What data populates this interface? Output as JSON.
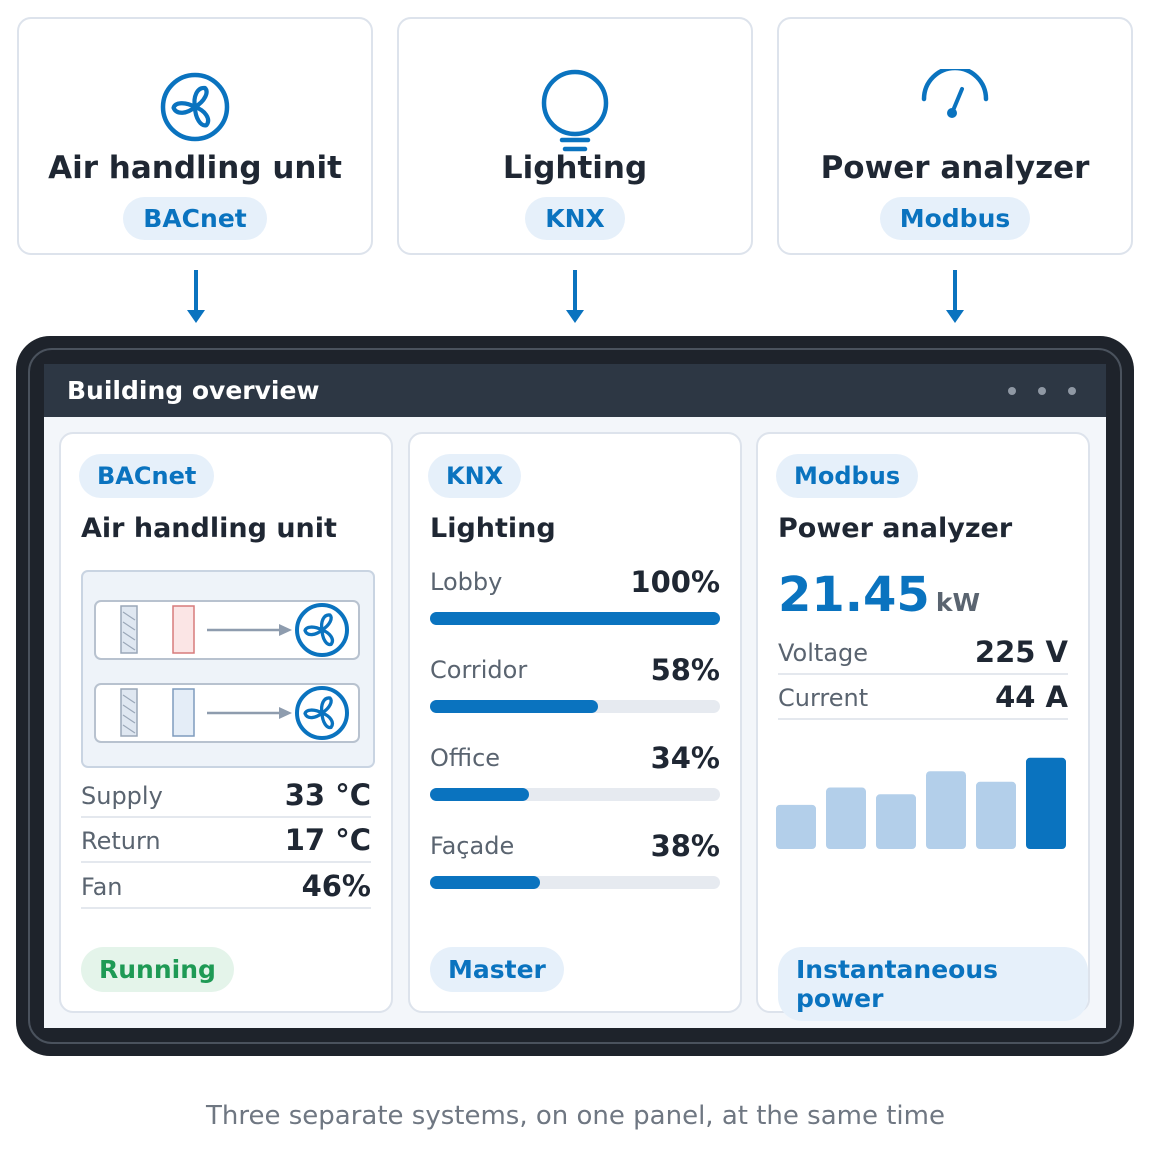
{
  "sources": [
    {
      "title": "Air handling unit",
      "protocol": "BACnet",
      "icon": "fan-icon"
    },
    {
      "title": "Lighting",
      "protocol": "KNX",
      "icon": "light-bulb-icon"
    },
    {
      "title": "Power analyzer",
      "protocol": "Modbus",
      "icon": "gauge-icon"
    }
  ],
  "panel": {
    "title": "Building overview",
    "menu_icon": "more-dots-icon",
    "ahu": {
      "protocol": "BACnet",
      "title": "Air handling unit",
      "rows": [
        {
          "label": "Supply",
          "value": "33 °C"
        },
        {
          "label": "Return",
          "value": "17 °C"
        },
        {
          "label": "Fan",
          "value": "46%"
        }
      ],
      "status": "Running",
      "status_color": "#1e9a55"
    },
    "lighting": {
      "protocol": "KNX",
      "title": "Lighting",
      "zones": [
        {
          "label": "Lobby",
          "value": "100%",
          "level": 1.0
        },
        {
          "label": "Corridor",
          "value": "58%",
          "level": 0.58
        },
        {
          "label": "Office",
          "value": "34%",
          "level": 0.34
        },
        {
          "label": "Façade",
          "value": "38%",
          "level": 0.38
        }
      ],
      "status": "Master"
    },
    "power": {
      "protocol": "Modbus",
      "title": "Power analyzer",
      "value": "21.45",
      "unit": "kW",
      "rows": [
        {
          "label": "Voltage",
          "value": "225 V"
        },
        {
          "label": "Current",
          "value": "44 A"
        }
      ],
      "status": "Instantaneous power"
    }
  },
  "chart_data": {
    "type": "bar",
    "categories": [
      "1",
      "2",
      "3",
      "4",
      "5",
      "6"
    ],
    "values": [
      46,
      64,
      57,
      81,
      70,
      95
    ],
    "highlight_index": 5,
    "title": "",
    "xlabel": "",
    "ylabel": "",
    "ylim": [
      0,
      100
    ],
    "grid": false
  },
  "colors": {
    "accent": "#0a73bf",
    "accent_light": "#b3cfea",
    "pill_bg": "#e6f0fa",
    "running_bg": "#e4f4ea",
    "panel_frame": "#1e232b",
    "screen_header": "#2d3744"
  },
  "caption": "Three separate systems, on one panel, at the same time"
}
